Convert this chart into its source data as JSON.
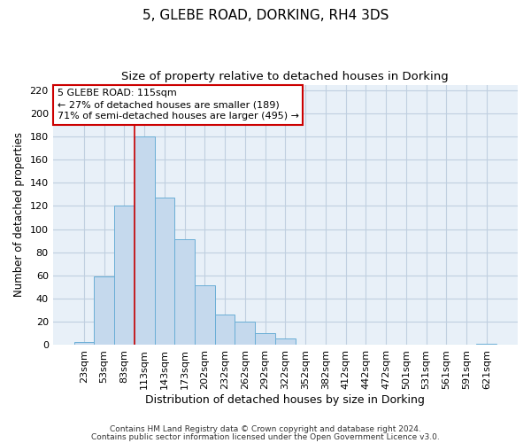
{
  "title": "5, GLEBE ROAD, DORKING, RH4 3DS",
  "subtitle": "Size of property relative to detached houses in Dorking",
  "xlabel": "Distribution of detached houses by size in Dorking",
  "ylabel": "Number of detached properties",
  "bar_labels": [
    "23sqm",
    "53sqm",
    "83sqm",
    "113sqm",
    "143sqm",
    "173sqm",
    "202sqm",
    "232sqm",
    "262sqm",
    "292sqm",
    "322sqm",
    "352sqm",
    "382sqm",
    "412sqm",
    "442sqm",
    "472sqm",
    "501sqm",
    "531sqm",
    "561sqm",
    "591sqm",
    "621sqm"
  ],
  "bar_values": [
    2,
    59,
    120,
    180,
    127,
    91,
    51,
    26,
    20,
    10,
    5,
    0,
    0,
    0,
    0,
    0,
    0,
    0,
    0,
    0,
    1
  ],
  "bar_color": "#c5d9ed",
  "bar_edge_color": "#6aaed6",
  "vline_x_index": 3,
  "vline_color": "#cc0000",
  "ylim": [
    0,
    225
  ],
  "yticks": [
    0,
    20,
    40,
    60,
    80,
    100,
    120,
    140,
    160,
    180,
    200,
    220
  ],
  "annotation_title": "5 GLEBE ROAD: 115sqm",
  "annotation_line1": "← 27% of detached houses are smaller (189)",
  "annotation_line2": "71% of semi-detached houses are larger (495) →",
  "annotation_box_color": "#ffffff",
  "annotation_box_edge": "#cc0000",
  "footer1": "Contains HM Land Registry data © Crown copyright and database right 2024.",
  "footer2": "Contains public sector information licensed under the Open Government Licence v3.0.",
  "background_color": "#ffffff",
  "plot_bg_color": "#e8f0f8",
  "grid_color": "#c0cfe0",
  "title_fontsize": 11,
  "subtitle_fontsize": 9.5,
  "xlabel_fontsize": 9,
  "ylabel_fontsize": 8.5,
  "tick_fontsize": 8,
  "annotation_fontsize": 8,
  "footer_fontsize": 6.5
}
